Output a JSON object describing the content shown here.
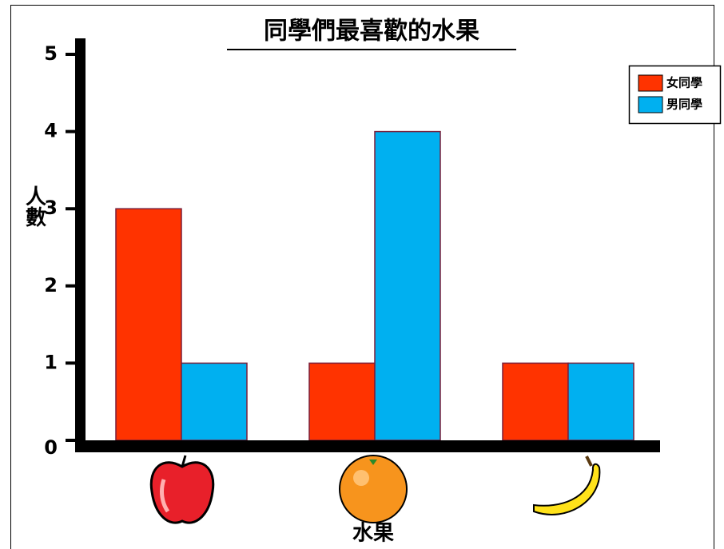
{
  "chart_data": {
    "type": "bar",
    "title": "同學們最喜歡的水果",
    "x_label": "水果",
    "y_label": "人數",
    "categories": [
      null,
      null,
      null
    ],
    "series": [
      {
        "name": "女同學",
        "color": "#ff3300",
        "values": [
          3,
          1,
          1
        ]
      },
      {
        "name": "男同學",
        "color": "#00b0f0",
        "values": [
          1,
          4,
          1
        ]
      }
    ],
    "ylim": [
      0,
      5
    ],
    "yticks": [
      0,
      1,
      2,
      3,
      4,
      5
    ],
    "grid": false,
    "legend": "upper right"
  }
}
